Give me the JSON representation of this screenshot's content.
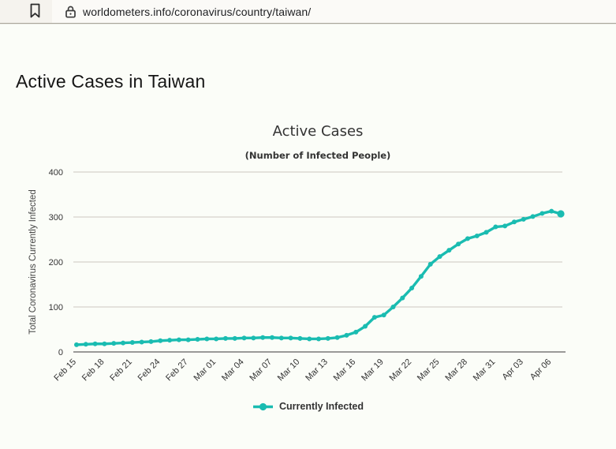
{
  "browser": {
    "url": "worldometers.info/coronavirus/country/taiwan/",
    "bookmark_icon": "bookmark-icon",
    "lock_icon": "lock-icon"
  },
  "page": {
    "heading": "Active Cases in Taiwan"
  },
  "colors": {
    "accent_teal": "#1abcb1",
    "axis_line": "#5f5f5f",
    "gridline": "#ccc8c0",
    "tick_text": "#333333",
    "page_bg": "#fbfdf8",
    "topbar_bg": "#f5f3ee",
    "urlfield_bg": "#fbfaf7"
  },
  "chart_data": {
    "type": "line",
    "title": "Active Cases",
    "subtitle": "(Number of Infected People)",
    "ylabel": "Total Coronavirus Currently Infected",
    "xlabel": "",
    "ylim": [
      0,
      400
    ],
    "yticks": [
      0,
      100,
      200,
      300,
      400
    ],
    "grid": true,
    "legend_position": "bottom",
    "x_tick_interval": 3,
    "x_tick_labels": [
      "Feb 15",
      "Feb 18",
      "Feb 21",
      "Feb 24",
      "Feb 27",
      "Mar 01",
      "Mar 04",
      "Mar 07",
      "Mar 10",
      "Mar 13",
      "Mar 16",
      "Mar 19",
      "Mar 22",
      "Mar 25",
      "Mar 28",
      "Mar 31",
      "Apr 03",
      "Apr 06"
    ],
    "series": [
      {
        "name": "Currently Infected",
        "color": "#1abcb1",
        "x": [
          "Feb 15",
          "Feb 16",
          "Feb 17",
          "Feb 18",
          "Feb 19",
          "Feb 20",
          "Feb 21",
          "Feb 22",
          "Feb 23",
          "Feb 24",
          "Feb 25",
          "Feb 26",
          "Feb 27",
          "Feb 28",
          "Feb 29",
          "Mar 01",
          "Mar 02",
          "Mar 03",
          "Mar 04",
          "Mar 05",
          "Mar 06",
          "Mar 07",
          "Mar 08",
          "Mar 09",
          "Mar 10",
          "Mar 11",
          "Mar 12",
          "Mar 13",
          "Mar 14",
          "Mar 15",
          "Mar 16",
          "Mar 17",
          "Mar 18",
          "Mar 19",
          "Mar 20",
          "Mar 21",
          "Mar 22",
          "Mar 23",
          "Mar 24",
          "Mar 25",
          "Mar 26",
          "Mar 27",
          "Mar 28",
          "Mar 29",
          "Mar 30",
          "Mar 31",
          "Apr 01",
          "Apr 02",
          "Apr 03",
          "Apr 04",
          "Apr 05",
          "Apr 06",
          "Apr 07"
        ],
        "values": [
          16,
          17,
          18,
          18,
          19,
          20,
          21,
          22,
          23,
          25,
          26,
          27,
          27,
          28,
          29,
          29,
          30,
          30,
          31,
          31,
          32,
          32,
          31,
          31,
          30,
          29,
          29,
          30,
          32,
          37,
          44,
          57,
          77,
          82,
          100,
          120,
          142,
          168,
          195,
          212,
          226,
          240,
          252,
          258,
          266,
          278,
          280,
          289,
          295,
          301,
          308,
          313,
          307
        ]
      }
    ]
  }
}
